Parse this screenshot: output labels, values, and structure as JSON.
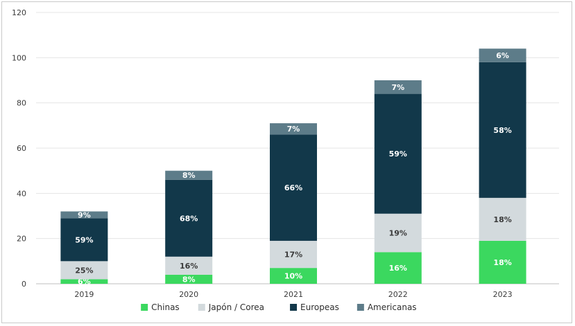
{
  "chart_data": {
    "type": "bar",
    "stacked": true,
    "categories": [
      "2019",
      "2020",
      "2021",
      "2022",
      "2023"
    ],
    "ylim": [
      0,
      120
    ],
    "yticks": [
      0,
      20,
      40,
      60,
      80,
      100,
      120
    ],
    "grid": true,
    "legend_position": "bottom",
    "series": [
      {
        "name": "Chinas",
        "color": "#3bd85f",
        "label_color": "#ffffff",
        "values": [
          2,
          4,
          7,
          14,
          19
        ],
        "labels": [
          "6%",
          "8%",
          "10%",
          "16%",
          "18%"
        ]
      },
      {
        "name": "Japón / Corea",
        "color": "#d3dadd",
        "label_color": "#3a3a3a",
        "values": [
          8,
          8,
          12,
          17,
          19
        ],
        "labels": [
          "25%",
          "16%",
          "17%",
          "19%",
          "18%"
        ]
      },
      {
        "name": "Europeas",
        "color": "#12384a",
        "label_color": "#ffffff",
        "values": [
          19,
          34,
          47,
          53,
          60
        ],
        "labels": [
          "59%",
          "68%",
          "66%",
          "59%",
          "58%"
        ]
      },
      {
        "name": "Americanas",
        "color": "#5d7c89",
        "label_color": "#ffffff",
        "values": [
          3,
          4,
          5,
          6,
          6
        ],
        "labels": [
          "9%",
          "8%",
          "7%",
          "7%",
          "6%"
        ]
      }
    ]
  }
}
